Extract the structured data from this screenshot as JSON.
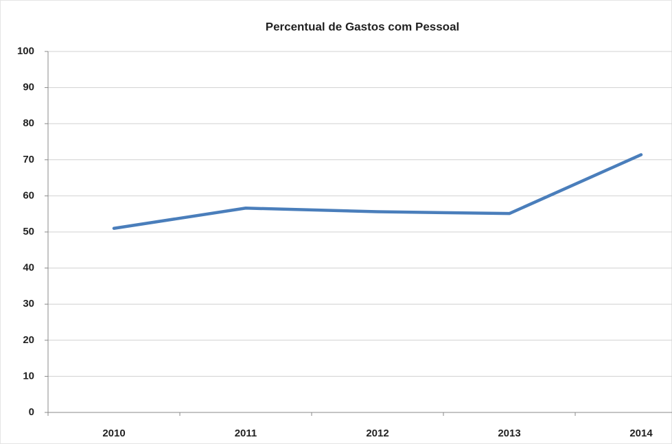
{
  "chart_data": {
    "type": "line",
    "title": "Percentual de Gastos com Pessoal",
    "categories": [
      "2010",
      "2011",
      "2012",
      "2013",
      "2014"
    ],
    "values": [
      51,
      56.6,
      55.6,
      55.1,
      71.4
    ],
    "color": "#4a7ebb",
    "ylim": [
      0,
      100
    ],
    "yticks": [
      0,
      10,
      20,
      30,
      40,
      50,
      60,
      70,
      80,
      90,
      100
    ],
    "grid": true
  }
}
